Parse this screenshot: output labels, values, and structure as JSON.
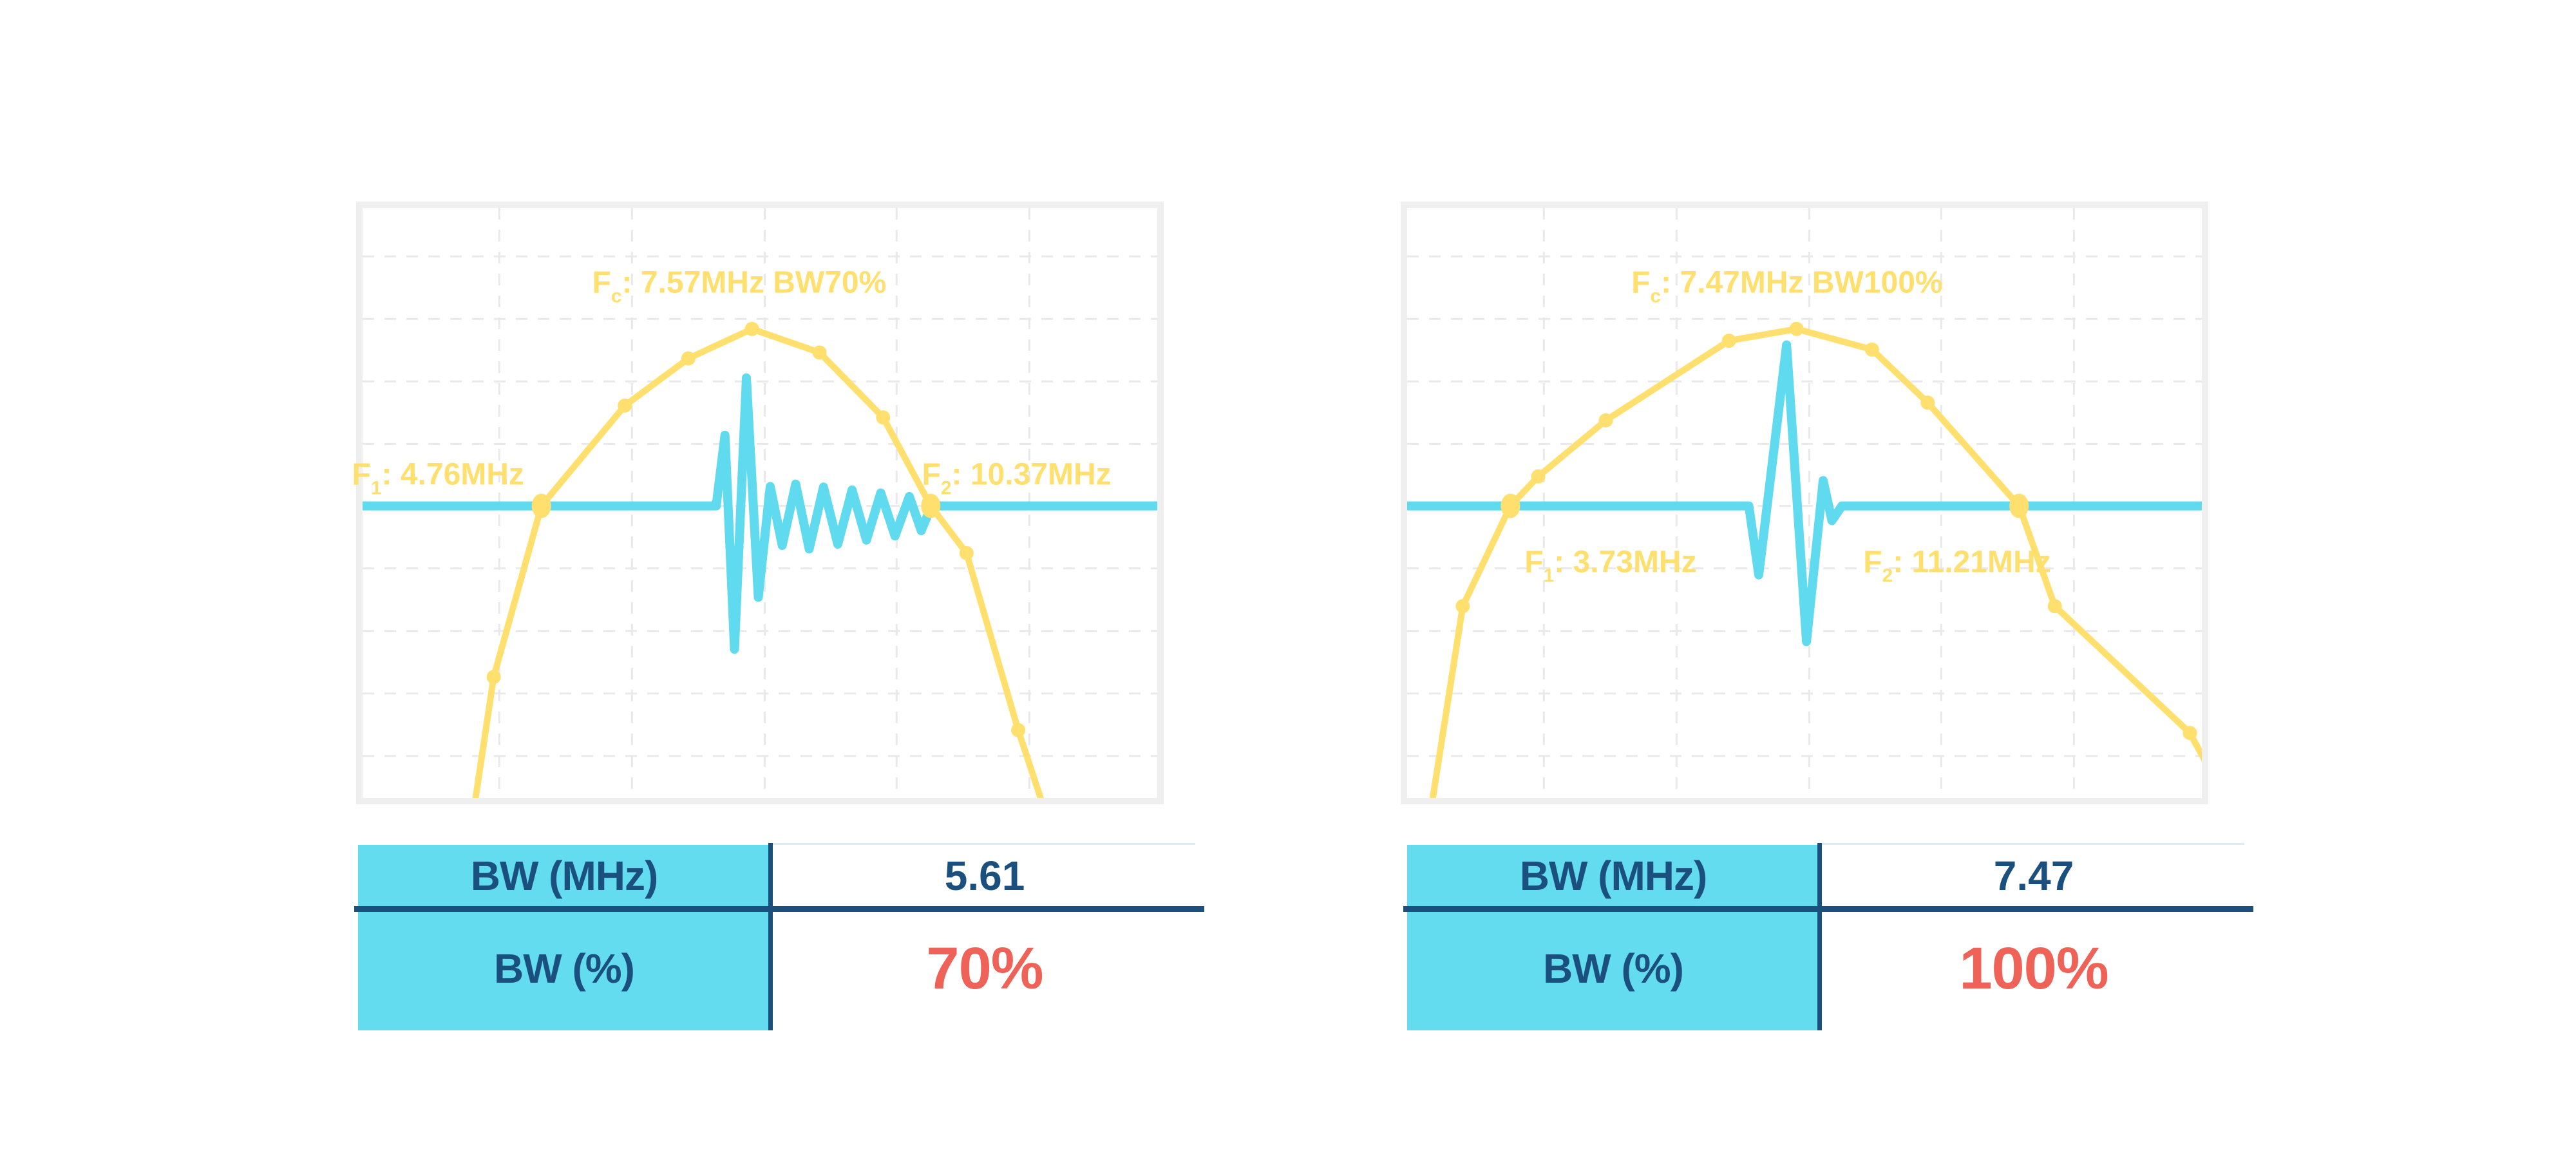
{
  "page": {
    "background": "#ffffff"
  },
  "colors": {
    "yellow": "#FFE06E",
    "cyan_fill": "#63DCEF",
    "cyan_curve": "#5FDAEE",
    "navy": "#1B507E",
    "red": "#EE6258",
    "plot_border": "#EFEFEF",
    "grid": "#E9E9E9",
    "hairline": "#D8EDF6"
  },
  "chart_data": [
    {
      "type": "line",
      "title": "Fc: 7.57MHz BW70%",
      "description": "Transducer frequency spectrum (yellow, with point markers) and echo RF pulse waveform (cyan) for 70% fractional bandwidth; long ringing pulse.",
      "fc_mhz": 7.57,
      "f1_mhz": 4.76,
      "f2_mhz": 10.37,
      "bw_mhz": 5.61,
      "bw_percent": 70,
      "axes": {
        "x": "frequency (unlabeled)",
        "y": "amplitude (unlabeled)",
        "grid": "dashed"
      },
      "labels": {
        "fc_label": {
          "base": "F",
          "sub": "c",
          "rest": ": 7.57MHz BW70%",
          "x": 0.474,
          "y": 0.127
        },
        "f1_label": {
          "base": "F",
          "sub": "1",
          "rest": ": 4.76MHz",
          "x": 0.095,
          "y": 0.452
        },
        "f2_label": {
          "base": "F",
          "sub": "2",
          "rest": ": 10.37MHz",
          "x": 0.823,
          "y": 0.452
        }
      },
      "grid": {
        "vlines": [
          0.172,
          0.339,
          0.506,
          0.672,
          0.839
        ],
        "hlines": [
          0.082,
          0.188,
          0.294,
          0.4,
          0.505,
          0.611,
          0.717,
          0.823,
          0.929
        ]
      },
      "spectrum_points": [
        [
          0.14,
          1.02,
          ""
        ],
        [
          0.165,
          0.795,
          "s"
        ],
        [
          0.225,
          0.505,
          "b"
        ],
        [
          0.33,
          0.335,
          "s"
        ],
        [
          0.41,
          0.255,
          "s"
        ],
        [
          0.49,
          0.205,
          "s"
        ],
        [
          0.575,
          0.245,
          "s"
        ],
        [
          0.655,
          0.355,
          "s"
        ],
        [
          0.715,
          0.505,
          "b"
        ],
        [
          0.76,
          0.585,
          "s"
        ],
        [
          0.825,
          0.885,
          "s"
        ],
        [
          0.858,
          1.02,
          ""
        ]
      ],
      "pulse": {
        "baseline_y": 0.505,
        "points": [
          [
            0.0,
            0.505
          ],
          [
            0.445,
            0.505
          ],
          [
            0.456,
            0.385
          ],
          [
            0.468,
            0.748
          ],
          [
            0.483,
            0.288
          ],
          [
            0.498,
            0.66
          ],
          [
            0.513,
            0.472
          ],
          [
            0.528,
            0.572
          ],
          [
            0.545,
            0.468
          ],
          [
            0.562,
            0.578
          ],
          [
            0.58,
            0.473
          ],
          [
            0.598,
            0.57
          ],
          [
            0.616,
            0.478
          ],
          [
            0.634,
            0.563
          ],
          [
            0.652,
            0.483
          ],
          [
            0.67,
            0.556
          ],
          [
            0.688,
            0.489
          ],
          [
            0.703,
            0.547
          ],
          [
            0.716,
            0.505
          ],
          [
            1.0,
            0.505
          ]
        ]
      }
    },
    {
      "type": "line",
      "title": "Fc: 7.47MHz BW100%",
      "description": "Transducer frequency spectrum (yellow, with point markers) and echo RF pulse waveform (cyan) for 100% fractional bandwidth; short pulse.",
      "fc_mhz": 7.47,
      "f1_mhz": 3.73,
      "f2_mhz": 11.21,
      "bw_mhz": 7.47,
      "bw_percent": 100,
      "axes": {
        "x": "frequency (unlabeled)",
        "y": "amplitude (unlabeled)",
        "grid": "dashed"
      },
      "labels": {
        "fc_label": {
          "base": "F",
          "sub": "c",
          "rest": ": 7.47MHz BW100%",
          "x": 0.478,
          "y": 0.127
        },
        "f1_label": {
          "base": "F",
          "sub": "1",
          "rest": ": 3.73MHz",
          "x": 0.256,
          "y": 0.6
        },
        "f2_label": {
          "base": "F",
          "sub": "2",
          "rest": ": 11.21MHz",
          "x": 0.692,
          "y": 0.6
        }
      },
      "grid": {
        "vlines": [
          0.172,
          0.339,
          0.506,
          0.672,
          0.839
        ],
        "hlines": [
          0.082,
          0.188,
          0.294,
          0.4,
          0.505,
          0.611,
          0.717,
          0.823,
          0.929
        ]
      },
      "spectrum_points": [
        [
          0.03,
          1.02,
          ""
        ],
        [
          0.07,
          0.675,
          "s"
        ],
        [
          0.13,
          0.505,
          "b"
        ],
        [
          0.165,
          0.455,
          "s"
        ],
        [
          0.25,
          0.36,
          "s"
        ],
        [
          0.405,
          0.225,
          "s"
        ],
        [
          0.49,
          0.205,
          "s"
        ],
        [
          0.585,
          0.24,
          "s"
        ],
        [
          0.655,
          0.33,
          "s"
        ],
        [
          0.77,
          0.505,
          "b"
        ],
        [
          0.815,
          0.675,
          "s"
        ],
        [
          0.985,
          0.89,
          "s"
        ],
        [
          1.005,
          0.94,
          ""
        ]
      ],
      "pulse": {
        "baseline_y": 0.505,
        "points": [
          [
            0.0,
            0.505
          ],
          [
            0.43,
            0.505
          ],
          [
            0.4425,
            0.622
          ],
          [
            0.4775,
            0.232
          ],
          [
            0.5025,
            0.735
          ],
          [
            0.5235,
            0.462
          ],
          [
            0.5345,
            0.53
          ],
          [
            0.547,
            0.505
          ],
          [
            1.0,
            0.505
          ]
        ]
      }
    }
  ],
  "tables": [
    {
      "rows": [
        {
          "label": "BW (MHz)",
          "value": "5.61",
          "value_color": "#1B507E"
        },
        {
          "label": "BW (%)",
          "value": "70%",
          "value_color": "#EE6258"
        }
      ]
    },
    {
      "rows": [
        {
          "label": "BW (MHz)",
          "value": "7.47",
          "value_color": "#1B507E"
        },
        {
          "label": "BW (%)",
          "value": "100%",
          "value_color": "#EE6258"
        }
      ]
    }
  ]
}
